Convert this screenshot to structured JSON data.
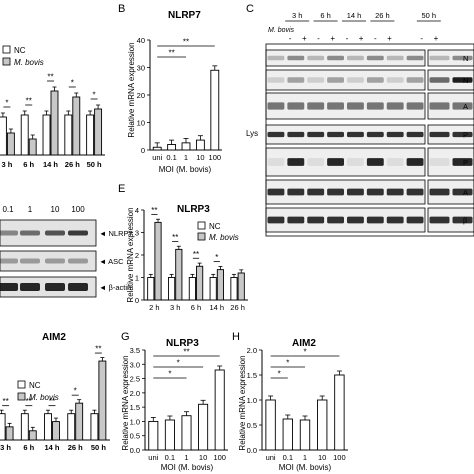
{
  "panels": {
    "A": {
      "letter": "",
      "title": "",
      "legend": [
        "NC",
        "M. bovis"
      ],
      "categories": [
        "3 h",
        "6 h",
        "14 h",
        "26 h",
        "50 h"
      ],
      "series": [
        {
          "name": "NC",
          "values": [
            0.95,
            1.0,
            1.0,
            1.0,
            1.0
          ]
        },
        {
          "name": "M. bovis",
          "values": [
            0.55,
            0.4,
            1.6,
            1.45,
            1.15
          ]
        }
      ],
      "sig": [
        "*",
        "**",
        "**",
        "*",
        "*"
      ]
    },
    "B": {
      "letter": "B",
      "title": "NLRP7",
      "ylabel": "Relative mRNA expression",
      "xlabel": "MOI (M. bovis)",
      "ylim": [
        0,
        40
      ],
      "yticks": [
        "0",
        "10",
        "20",
        "30",
        "40"
      ],
      "categories": [
        "uni",
        "0.1",
        "1",
        "10",
        "100"
      ],
      "values": [
        1.0,
        2.0,
        2.6,
        3.6,
        29
      ],
      "brackets": [
        {
          "from": "uni",
          "to": "1",
          "label": "**"
        },
        {
          "from": "uni",
          "to": "100",
          "label": "**"
        }
      ]
    },
    "C": {
      "letter": "C",
      "times": [
        "3 h",
        "6 h",
        "14 h",
        "26 h",
        "50 h"
      ],
      "row_label": "M. bovis",
      "signs": [
        "-",
        "+",
        "-",
        "+",
        "-",
        "+",
        "-",
        "+",
        "-",
        "+"
      ],
      "lys_label": "Lys",
      "band_labels": [
        "N",
        "N",
        "A",
        "P",
        "P",
        "A",
        "β"
      ]
    },
    "D": {
      "lanes": [
        "0.1",
        "1",
        "10",
        "100"
      ],
      "band_labels": [
        "◄ NLRP7",
        "◄ ASC",
        "◄ β-actin"
      ]
    },
    "E": {
      "letter": "E",
      "title": "NLRP3",
      "ylabel": "Relative mRNA expression",
      "yticks": [
        "0",
        "1",
        "2",
        "3",
        "4"
      ],
      "ylim": [
        0,
        4
      ],
      "legend": [
        "NC",
        "M. bovis"
      ],
      "categories": [
        "2 h",
        "3 h",
        "6 h",
        "14 h",
        "26 h"
      ],
      "series": [
        {
          "name": "NC",
          "values": [
            1.0,
            1.0,
            1.0,
            1.0,
            1.0
          ]
        },
        {
          "name": "M. bovis",
          "values": [
            3.45,
            2.25,
            1.5,
            1.35,
            1.2
          ]
        }
      ],
      "sig": [
        "**",
        "**",
        "**",
        "*",
        ""
      ]
    },
    "F": {
      "title": "AIM2",
      "legend": [
        "NC",
        "M. bovis"
      ],
      "categories": [
        "3 h",
        "6 h",
        "14 h",
        "26 h",
        "50 h"
      ],
      "series": [
        {
          "name": "NC",
          "values": [
            1.0,
            1.0,
            1.0,
            1.0,
            1.0
          ]
        },
        {
          "name": "M. bovis",
          "values": [
            0.5,
            0.35,
            0.7,
            1.4,
            3.0
          ]
        }
      ],
      "sig": [
        "**",
        "**",
        "**",
        "*",
        "**"
      ]
    },
    "G": {
      "letter": "G",
      "title": "NLRP3",
      "ylabel": "Relative mRNA expression",
      "xlabel": "MOI (M. bovis)",
      "yticks": [
        "0.0",
        "0.5",
        "1.0",
        "1.5",
        "2.0",
        "2.5",
        "3.0",
        "3.5"
      ],
      "ylim": [
        0,
        3.5
      ],
      "categories": [
        "uni",
        "0.1",
        "1",
        "10",
        "100"
      ],
      "values": [
        1.0,
        1.05,
        1.2,
        1.6,
        2.8
      ],
      "brackets": [
        {
          "from": "uni",
          "to": "1",
          "label": "*"
        },
        {
          "from": "uni",
          "to": "10",
          "label": "*"
        },
        {
          "from": "uni",
          "to": "100",
          "label": "**"
        }
      ]
    },
    "H": {
      "letter": "H",
      "title": "AIM2",
      "ylabel": "Relative mRNA expression",
      "xlabel": "MOI (M. bovis)",
      "yticks": [
        "0.0",
        "0.5",
        "1.0",
        "1.5",
        "2.0"
      ],
      "ylim": [
        0,
        2.0
      ],
      "categories": [
        "uni",
        "0.1",
        "1",
        "10",
        "100"
      ],
      "values": [
        1.0,
        0.62,
        0.6,
        1.0,
        1.5
      ],
      "brackets": [
        {
          "from": "uni",
          "to": "0.1",
          "label": "*"
        },
        {
          "from": "uni",
          "to": "1",
          "label": "*"
        },
        {
          "from": "uni",
          "to": "100",
          "label": "*"
        }
      ]
    }
  }
}
